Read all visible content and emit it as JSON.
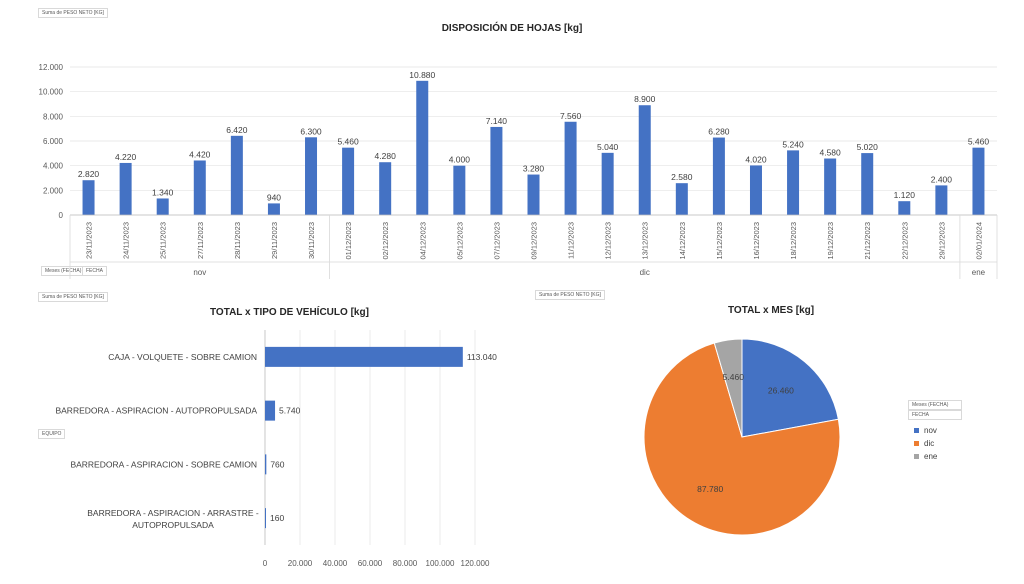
{
  "pivot_tags": {
    "top_value": "Suma de PESO NETO [KG]",
    "top_rows": [
      "Meses (FECHA)",
      "FECHA"
    ],
    "bottom_left_value": "Suma de PESO NETO [KG]",
    "bottom_left_rows": "EQUIPO",
    "bottom_mid_value": "Suma de PESO NETO [KG]",
    "pie_rows": [
      "Meses (FECHA)",
      "FECHA"
    ]
  },
  "chart_data": [
    {
      "type": "bar",
      "title": "DISPOSICIÓN DE HOJAS [kg]",
      "categories": [
        "23/11/2023",
        "24/11/2023",
        "25/11/2023",
        "27/11/2023",
        "28/11/2023",
        "29/11/2023",
        "30/11/2023",
        "01/12/2023",
        "02/12/2023",
        "04/12/2023",
        "05/12/2023",
        "07/12/2023",
        "09/12/2023",
        "11/12/2023",
        "12/12/2023",
        "13/12/2023",
        "14/12/2023",
        "15/12/2023",
        "16/12/2023",
        "18/12/2023",
        "19/12/2023",
        "21/12/2023",
        "22/12/2023",
        "29/12/2023",
        "02/01/2024"
      ],
      "values": [
        2820,
        4220,
        1340,
        4420,
        6420,
        940,
        6300,
        5460,
        4280,
        10880,
        4000,
        7140,
        3280,
        7560,
        5040,
        8900,
        2580,
        6280,
        4020,
        5240,
        4580,
        5020,
        1120,
        2400,
        5460
      ],
      "value_labels": [
        "2.820",
        "4.220",
        "1.340",
        "4.420",
        "6.420",
        "940",
        "6.300",
        "5.460",
        "4.280",
        "10.880",
        "4.000",
        "7.140",
        "3.280",
        "7.560",
        "5.040",
        "8.900",
        "2.580",
        "6.280",
        "4.020",
        "5.240",
        "4.580",
        "5.020",
        "1.120",
        "2.400",
        "5.460"
      ],
      "groups": [
        {
          "label": "nov",
          "count": 7
        },
        {
          "label": "dic",
          "count": 17
        },
        {
          "label": "ene",
          "count": 1
        }
      ],
      "ylim": [
        0,
        12000
      ],
      "yticks": [
        "0",
        "2.000",
        "4.000",
        "6.000",
        "8.000",
        "10.000",
        "12.000"
      ],
      "color": "#4472c4",
      "grid": true
    },
    {
      "type": "bar",
      "orientation": "horizontal",
      "title": "TOTAL x TIPO DE VEHÍCULO [kg]",
      "categories": [
        "CAJA  -  VOLQUETE  -  SOBRE CAMION",
        "BARREDORA  -  ASPIRACION  -  AUTOPROPULSADA",
        "BARREDORA  -  ASPIRACION  -  SOBRE CAMION",
        "BARREDORA  -  ASPIRACION  -  ARRASTRE  -  AUTOPROPULSADA"
      ],
      "values": [
        113040,
        5740,
        760,
        160
      ],
      "value_labels": [
        "113.040",
        "5.740",
        "760",
        "160"
      ],
      "xlim": [
        0,
        120000
      ],
      "xticks": [
        "0",
        "20.000",
        "40.000",
        "60.000",
        "80.000",
        "100.000",
        "120.000"
      ],
      "color": "#4472c4",
      "grid": true
    },
    {
      "type": "pie",
      "title": "TOTAL x MES [kg]",
      "labels": [
        "nov",
        "dic",
        "ene"
      ],
      "values": [
        26460,
        87780,
        5460
      ],
      "value_labels": [
        "26.460",
        "87.780",
        "5.460"
      ],
      "colors": [
        "#4472c4",
        "#ed7d31",
        "#a5a5a5"
      ],
      "legend": "right"
    }
  ]
}
